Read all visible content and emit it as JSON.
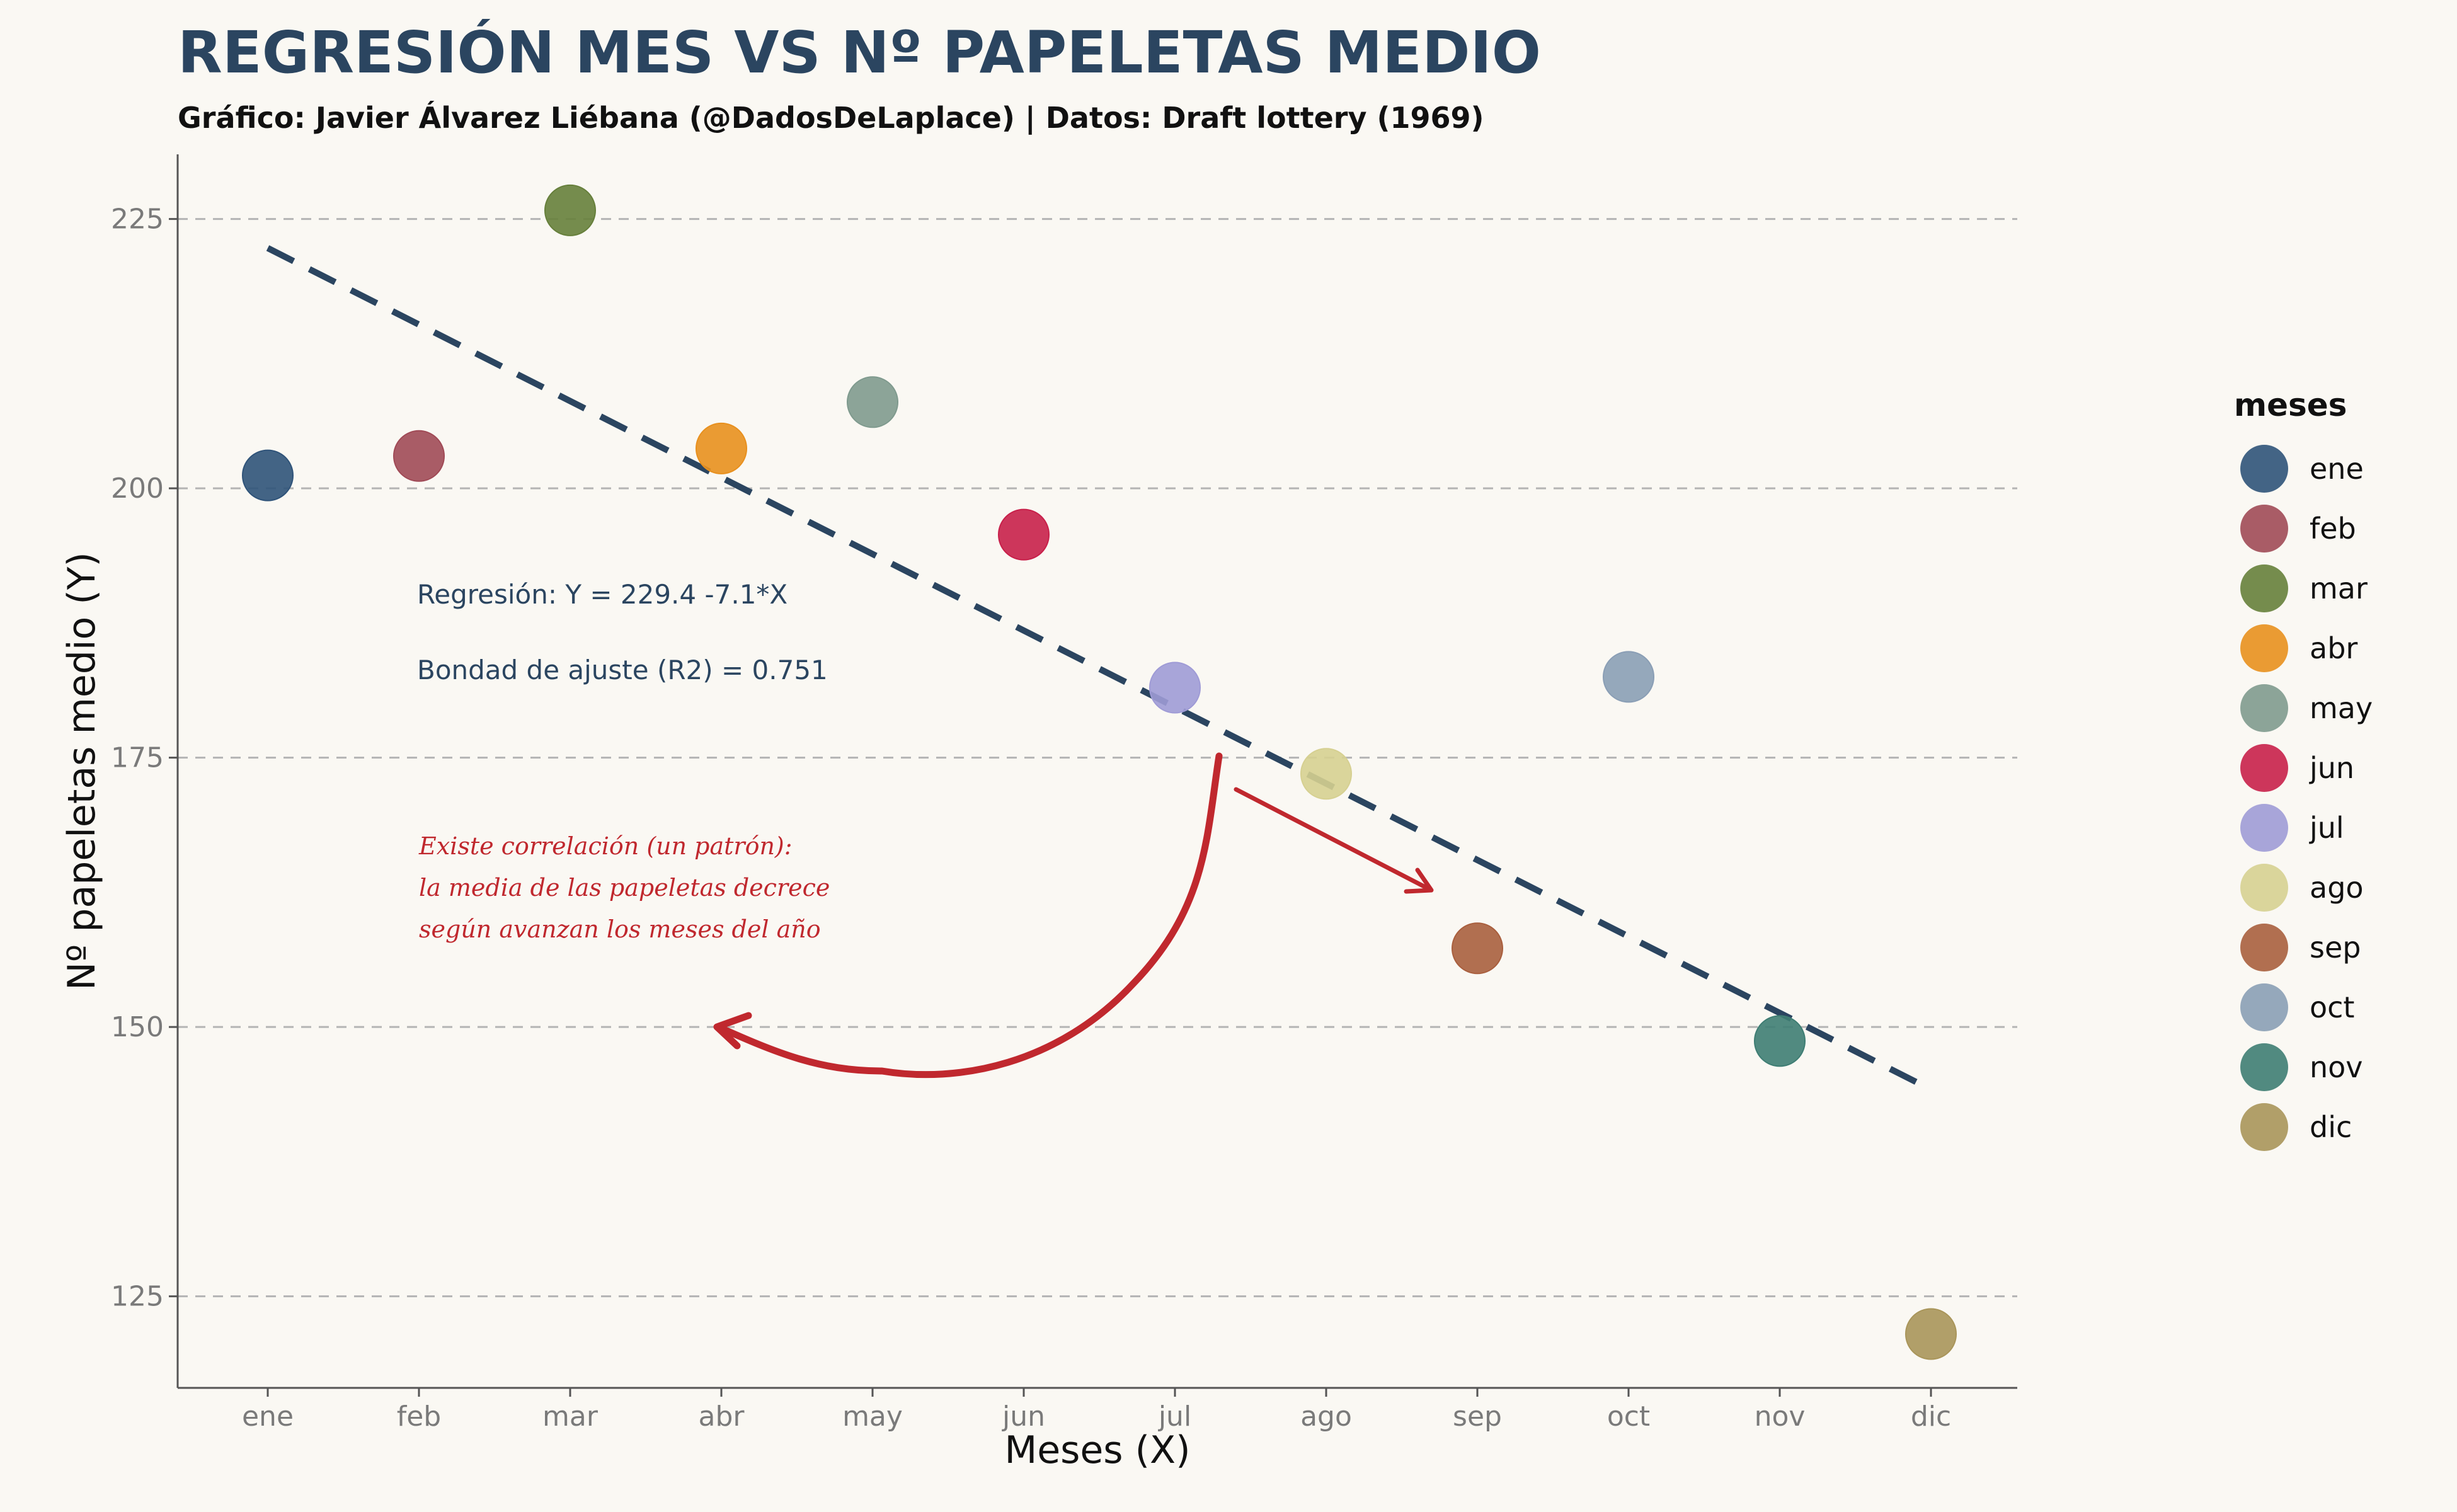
{
  "header": {
    "title": "REGRESIÓN MES VS Nº PAPELETAS MEDIO",
    "subtitle": "Gráfico: Javier Álvarez Liébana (@DadosDeLaplace) | Datos: Draft lottery (1969)"
  },
  "chart_data": {
    "type": "scatter",
    "title": "REGRESIÓN MES VS Nº PAPELETAS MEDIO",
    "subtitle": "Gráfico: Javier Álvarez Liébana (@DadosDeLaplace) | Datos: Draft lottery (1969)",
    "xlabel": "Meses (X)",
    "ylabel": "Nº papeletas medio (Y)",
    "categories": [
      "ene",
      "feb",
      "mar",
      "abr",
      "may",
      "jun",
      "jul",
      "ago",
      "sep",
      "oct",
      "nov",
      "dic"
    ],
    "values": [
      201.2,
      203.0,
      225.8,
      203.7,
      208.0,
      195.7,
      181.5,
      173.5,
      157.3,
      182.5,
      148.7,
      121.5
    ],
    "colors": [
      "#2f5379",
      "#a04a56",
      "#667f3b",
      "#e8901e",
      "#7f9a8e",
      "#c8204a",
      "#9f9bd6",
      "#d6d091",
      "#a95f3e",
      "#8a9eb5",
      "#3e7d73",
      "#a9955a"
    ],
    "yticks": [
      125,
      150,
      175,
      200,
      225
    ],
    "ylim": [
      116.5,
      231
    ],
    "grid": "horizontal dashed",
    "regression": {
      "intercept": 229.4,
      "slope": -7.1,
      "color": "#2b4560",
      "style": "dashed"
    },
    "legend": {
      "title": "meses",
      "position": "right"
    },
    "annotations": {
      "equation": "Regresión: Y = 229.4 -7.1*X",
      "r2": "Bondad de ajuste (R2) = 0.751",
      "comment_lines": [
        "Existe correlación (un patrón):",
        "la media de las papeletas decrece",
        "según avanzan los meses del año"
      ],
      "comment_color": "#c0282e"
    }
  }
}
